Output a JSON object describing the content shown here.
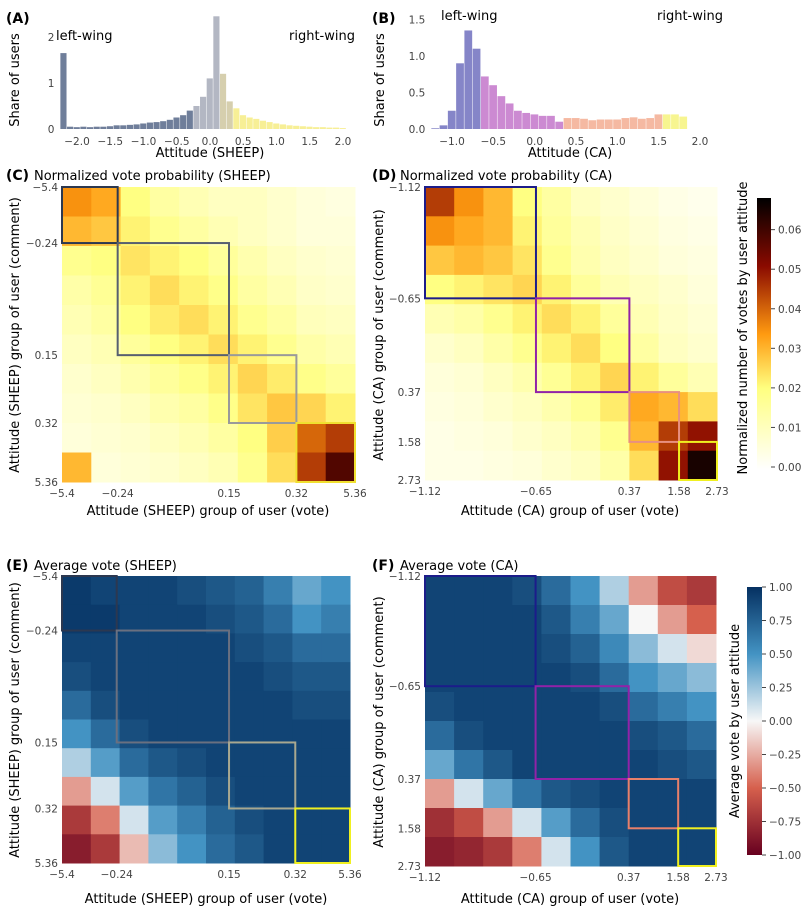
{
  "panels": {
    "A": {
      "label": "(A)",
      "ylabel": "Share of users",
      "xlabel": "Attitude (SHEEP)",
      "left_note": "left-wing",
      "right_note": "right-wing"
    },
    "B": {
      "label": "(B)",
      "ylabel": "Share of users",
      "xlabel": "Attitude (CA)",
      "left_note": "left-wing",
      "right_note": "right-wing"
    },
    "C": {
      "label": "(C)",
      "title": "Normalized vote probability (SHEEP)",
      "xlabel": "Attitude (SHEEP) group of user (vote)",
      "ylabel": "Attitude (SHEEP) group of user (comment)"
    },
    "D": {
      "label": "(D)",
      "title": "Normalized vote probability (CA)",
      "xlabel": "Attitude (CA) group of user (vote)",
      "ylabel": "Attitude (CA) group of user (comment)"
    },
    "E": {
      "label": "(E)",
      "title": "Average vote (SHEEP)",
      "xlabel": "Attitude (SHEEP) group of user (vote)",
      "ylabel": "Attitude (SHEEP) group of user (comment)"
    },
    "F": {
      "label": "(F)",
      "title": "Average vote (CA)",
      "xlabel": "Attitude (CA) group of user (vote)",
      "ylabel": "Attitude (CA) group of user (comment)"
    }
  },
  "colorbars": {
    "prob": {
      "label": "Normalized number of votes by user attitude",
      "ticks": [
        "0.00",
        "0.01",
        "0.02",
        "0.03",
        "0.04",
        "0.05",
        "0.06"
      ],
      "range": [
        0,
        0.068
      ],
      "colormap": "afmhot_r"
    },
    "vote": {
      "label": "Average vote by user attitude",
      "ticks": [
        "−1.00",
        "−0.75",
        "−0.50",
        "−0.25",
        "0.00",
        "0.25",
        "0.50",
        "0.75",
        "1.00"
      ],
      "range": [
        -1,
        1
      ],
      "colormap": "RdBu"
    }
  },
  "chart_data": [
    {
      "id": "A",
      "type": "bar",
      "xlim": [
        -2.25,
        2.1
      ],
      "ylim": [
        0,
        2.5
      ],
      "xticks": [
        "−2.0",
        "−1.5",
        "−1.0",
        "−0.5",
        "0.0",
        "0.5",
        "1.0",
        "1.5",
        "2.0"
      ],
      "xtick_values": [
        -2,
        -1.5,
        -1,
        -0.5,
        0,
        0.5,
        1,
        1.5,
        2
      ],
      "yticks": [
        "0",
        "1",
        "2"
      ],
      "ytick_values": [
        0,
        1,
        2
      ],
      "group_boundaries": [
        -0.24,
        0.15,
        0.32
      ],
      "group_colors": [
        "#6f7e9a",
        "#b3b7c3",
        "#d6cfae",
        "#f7ef96"
      ],
      "x": [
        -2.2,
        -2.1,
        -2.0,
        -1.9,
        -1.8,
        -1.7,
        -1.6,
        -1.5,
        -1.4,
        -1.3,
        -1.2,
        -1.1,
        -1.0,
        -0.9,
        -0.8,
        -0.7,
        -0.6,
        -0.5,
        -0.4,
        -0.3,
        -0.2,
        -0.1,
        0.0,
        0.1,
        0.2,
        0.3,
        0.4,
        0.5,
        0.6,
        0.7,
        0.8,
        0.9,
        1.0,
        1.1,
        1.2,
        1.3,
        1.4,
        1.5,
        1.6,
        1.7,
        1.8,
        1.9,
        2.0
      ],
      "values": [
        1.65,
        0.05,
        0.04,
        0.05,
        0.04,
        0.05,
        0.05,
        0.06,
        0.08,
        0.08,
        0.09,
        0.1,
        0.12,
        0.14,
        0.15,
        0.17,
        0.2,
        0.25,
        0.3,
        0.4,
        0.5,
        0.7,
        1.1,
        2.45,
        1.2,
        0.6,
        0.45,
        0.3,
        0.25,
        0.22,
        0.18,
        0.15,
        0.12,
        0.1,
        0.08,
        0.07,
        0.06,
        0.05,
        0.04,
        0.04,
        0.03,
        0.03,
        0.02
      ]
    },
    {
      "id": "B",
      "type": "bar",
      "xlim": [
        -1.25,
        2.1
      ],
      "ylim": [
        0,
        1.55
      ],
      "xticks": [
        "−1.0",
        "−0.5",
        "0.0",
        "0.5",
        "1.0",
        "1.5",
        "2.0"
      ],
      "xtick_values": [
        -1,
        -0.5,
        0,
        0.5,
        1,
        1.5,
        2
      ],
      "yticks": [
        "0.0",
        "0.5",
        "1.0",
        "1.5"
      ],
      "ytick_values": [
        0,
        0.5,
        1,
        1.5
      ],
      "group_boundaries": [
        -0.65,
        0.37,
        1.58
      ],
      "group_colors": [
        "#8585c8",
        "#cc8ad2",
        "#f5b9a2",
        "#f7f590"
      ],
      "x": [
        -1.2,
        -1.1,
        -1.0,
        -0.9,
        -0.8,
        -0.7,
        -0.6,
        -0.5,
        -0.4,
        -0.3,
        -0.2,
        -0.1,
        0.0,
        0.1,
        0.2,
        0.3,
        0.4,
        0.5,
        0.6,
        0.7,
        0.8,
        0.9,
        1.0,
        1.1,
        1.2,
        1.3,
        1.4,
        1.5,
        1.6,
        1.7,
        1.8
      ],
      "values": [
        0.01,
        0.05,
        0.25,
        0.9,
        1.35,
        1.1,
        0.72,
        0.6,
        0.45,
        0.35,
        0.25,
        0.22,
        0.2,
        0.18,
        0.18,
        0.1,
        0.15,
        0.15,
        0.14,
        0.12,
        0.13,
        0.13,
        0.13,
        0.15,
        0.16,
        0.14,
        0.15,
        0.2,
        0.2,
        0.2,
        0.17
      ]
    },
    {
      "id": "C",
      "type": "heatmap",
      "colorbar": "prob",
      "ticks": [
        "−5.4",
        "−0.24",
        "0.15",
        "0.32",
        "5.36"
      ],
      "tick_fractions": [
        0,
        0.19,
        0.57,
        0.8,
        1
      ],
      "box_colors": [
        "#2c3850",
        "#575f70",
        "#9a9a9a",
        "#f0e030"
      ],
      "values": [
        [
          0.035,
          0.032,
          0.02,
          0.015,
          0.012,
          0.01,
          0.01,
          0.008,
          0.006,
          0.005
        ],
        [
          0.03,
          0.028,
          0.022,
          0.018,
          0.015,
          0.012,
          0.01,
          0.008,
          0.006,
          0.006
        ],
        [
          0.018,
          0.02,
          0.024,
          0.022,
          0.02,
          0.016,
          0.013,
          0.01,
          0.008,
          0.007
        ],
        [
          0.014,
          0.017,
          0.022,
          0.025,
          0.022,
          0.019,
          0.015,
          0.012,
          0.009,
          0.008
        ],
        [
          0.012,
          0.015,
          0.02,
          0.023,
          0.025,
          0.022,
          0.018,
          0.015,
          0.011,
          0.01
        ],
        [
          0.01,
          0.012,
          0.016,
          0.02,
          0.022,
          0.025,
          0.022,
          0.018,
          0.014,
          0.012
        ],
        [
          0.008,
          0.01,
          0.013,
          0.016,
          0.019,
          0.022,
          0.026,
          0.023,
          0.019,
          0.016
        ],
        [
          0.007,
          0.008,
          0.01,
          0.013,
          0.015,
          0.019,
          0.024,
          0.028,
          0.026,
          0.022
        ],
        [
          0.006,
          0.007,
          0.008,
          0.01,
          0.012,
          0.015,
          0.02,
          0.027,
          0.04,
          0.045
        ],
        [
          0.03,
          0.006,
          0.007,
          0.008,
          0.01,
          0.012,
          0.018,
          0.025,
          0.045,
          0.058
        ]
      ]
    },
    {
      "id": "D",
      "type": "heatmap",
      "colorbar": "prob",
      "ticks": [
        "−1.12",
        "−0.65",
        "0.37",
        "1.58",
        "2.73"
      ],
      "tick_fractions": [
        0,
        0.38,
        0.7,
        0.87,
        1
      ],
      "box_colors": [
        "#1c1c8a",
        "#9222a8",
        "#e89080",
        "#f0f020"
      ],
      "values": [
        [
          0.045,
          0.035,
          0.03,
          0.02,
          0.015,
          0.01,
          0.008,
          0.006,
          0.004,
          0.003
        ],
        [
          0.035,
          0.032,
          0.03,
          0.022,
          0.016,
          0.012,
          0.009,
          0.007,
          0.005,
          0.004
        ],
        [
          0.028,
          0.03,
          0.028,
          0.024,
          0.018,
          0.013,
          0.01,
          0.008,
          0.006,
          0.005
        ],
        [
          0.02,
          0.022,
          0.024,
          0.026,
          0.022,
          0.016,
          0.012,
          0.01,
          0.008,
          0.006
        ],
        [
          0.012,
          0.014,
          0.018,
          0.022,
          0.025,
          0.022,
          0.016,
          0.012,
          0.009,
          0.007
        ],
        [
          0.008,
          0.01,
          0.014,
          0.018,
          0.022,
          0.025,
          0.02,
          0.015,
          0.01,
          0.008
        ],
        [
          0.006,
          0.007,
          0.01,
          0.013,
          0.017,
          0.022,
          0.026,
          0.022,
          0.016,
          0.012
        ],
        [
          0.005,
          0.006,
          0.008,
          0.01,
          0.013,
          0.017,
          0.023,
          0.032,
          0.03,
          0.025
        ],
        [
          0.004,
          0.005,
          0.006,
          0.008,
          0.01,
          0.013,
          0.018,
          0.03,
          0.045,
          0.05
        ],
        [
          0.004,
          0.004,
          0.005,
          0.006,
          0.008,
          0.01,
          0.014,
          0.025,
          0.05,
          0.065
        ]
      ]
    },
    {
      "id": "E",
      "type": "heatmap",
      "colorbar": "vote",
      "ticks": [
        "−5.4",
        "−0.24",
        "0.15",
        "0.32",
        "5.36"
      ],
      "tick_fractions": [
        0,
        0.19,
        0.58,
        0.81,
        1
      ],
      "box_colors": [
        "#2c3850",
        "#6a7080",
        "#a8a890",
        "#f0f020"
      ],
      "values": [
        [
          0.95,
          0.9,
          0.9,
          0.9,
          0.85,
          0.8,
          0.75,
          0.6,
          0.4,
          0.5
        ],
        [
          0.95,
          0.95,
          0.9,
          0.9,
          0.9,
          0.85,
          0.8,
          0.7,
          0.5,
          0.6
        ],
        [
          0.9,
          0.9,
          0.9,
          0.9,
          0.9,
          0.9,
          0.85,
          0.8,
          0.7,
          0.7
        ],
        [
          0.85,
          0.9,
          0.9,
          0.9,
          0.9,
          0.9,
          0.9,
          0.85,
          0.8,
          0.8
        ],
        [
          0.7,
          0.85,
          0.9,
          0.9,
          0.9,
          0.9,
          0.9,
          0.9,
          0.85,
          0.85
        ],
        [
          0.5,
          0.7,
          0.85,
          0.9,
          0.9,
          0.9,
          0.9,
          0.9,
          0.9,
          0.9
        ],
        [
          0.2,
          0.45,
          0.7,
          0.8,
          0.85,
          0.9,
          0.9,
          0.9,
          0.9,
          0.9
        ],
        [
          -0.3,
          0.1,
          0.45,
          0.65,
          0.75,
          0.85,
          0.9,
          0.9,
          0.9,
          0.9
        ],
        [
          -0.7,
          -0.4,
          0.1,
          0.45,
          0.6,
          0.75,
          0.85,
          0.9,
          0.9,
          0.9
        ],
        [
          -0.85,
          -0.7,
          -0.2,
          0.3,
          0.5,
          0.7,
          0.8,
          0.9,
          0.9,
          0.9
        ]
      ]
    },
    {
      "id": "F",
      "type": "heatmap",
      "colorbar": "vote",
      "ticks": [
        "−1.12",
        "−0.65",
        "0.37",
        "1.58",
        "2.73"
      ],
      "tick_fractions": [
        0,
        0.38,
        0.7,
        0.87,
        1
      ],
      "box_colors": [
        "#1c1c8a",
        "#9222a8",
        "#e8806a",
        "#f0f020"
      ],
      "values": [
        [
          0.9,
          0.9,
          0.9,
          0.85,
          0.7,
          0.5,
          0.2,
          -0.3,
          -0.6,
          -0.7
        ],
        [
          0.9,
          0.9,
          0.9,
          0.9,
          0.8,
          0.6,
          0.4,
          0,
          -0.3,
          -0.5
        ],
        [
          0.9,
          0.9,
          0.9,
          0.9,
          0.85,
          0.75,
          0.55,
          0.3,
          0.1,
          -0.1
        ],
        [
          0.9,
          0.9,
          0.9,
          0.9,
          0.9,
          0.85,
          0.7,
          0.5,
          0.4,
          0.3
        ],
        [
          0.85,
          0.9,
          0.9,
          0.9,
          0.9,
          0.9,
          0.85,
          0.7,
          0.6,
          0.5
        ],
        [
          0.7,
          0.85,
          0.9,
          0.9,
          0.9,
          0.9,
          0.9,
          0.85,
          0.8,
          0.7
        ],
        [
          0.4,
          0.65,
          0.8,
          0.9,
          0.9,
          0.9,
          0.9,
          0.9,
          0.85,
          0.8
        ],
        [
          -0.3,
          0.1,
          0.4,
          0.65,
          0.8,
          0.85,
          0.9,
          0.9,
          0.9,
          0.9
        ],
        [
          -0.75,
          -0.6,
          -0.3,
          0.1,
          0.45,
          0.7,
          0.85,
          0.9,
          0.9,
          0.9
        ],
        [
          -0.85,
          -0.8,
          -0.7,
          -0.4,
          0.1,
          0.5,
          0.8,
          0.9,
          0.9,
          0.9
        ]
      ]
    }
  ]
}
